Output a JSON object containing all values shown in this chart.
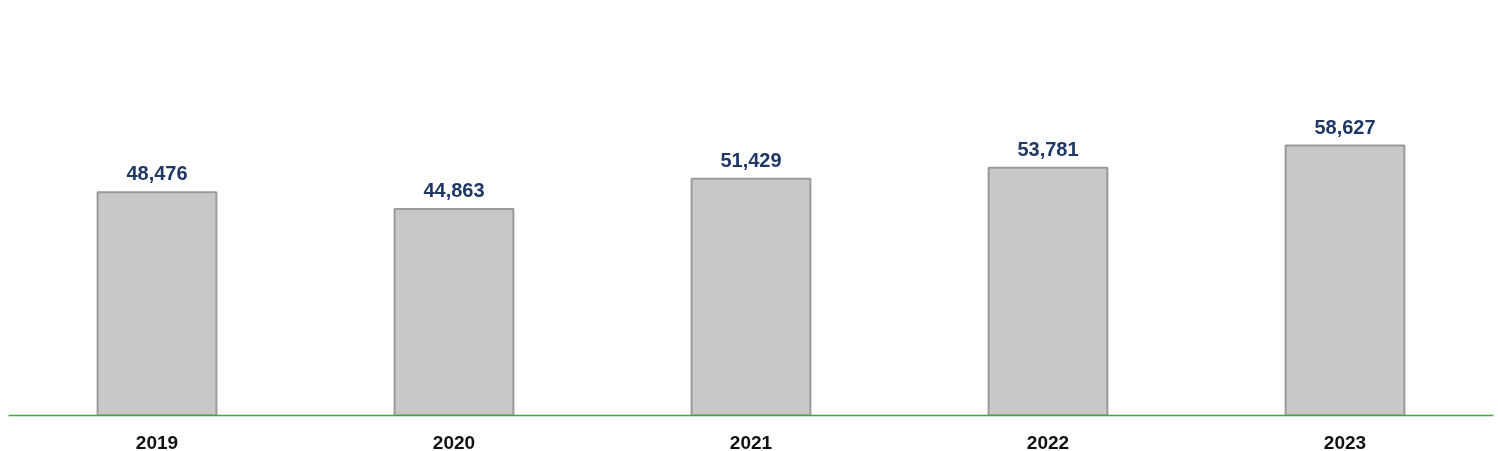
{
  "chart_data": {
    "type": "bar",
    "categories": [
      "2019",
      "2020",
      "2021",
      "2022",
      "2023"
    ],
    "values": [
      48476,
      44863,
      51429,
      53781,
      58627
    ],
    "value_labels": [
      "48,476",
      "44,863",
      "51,429",
      "53,781",
      "58,627"
    ],
    "color": "#c8c8c8"
  }
}
